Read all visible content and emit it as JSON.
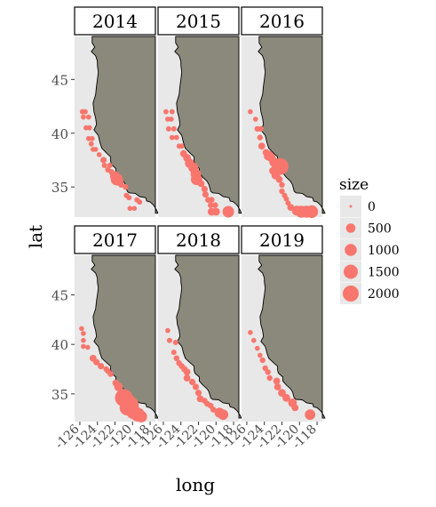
{
  "chart_data": {
    "type": "scatter",
    "facet_variable": "year",
    "facets": [
      {
        "label": "2014",
        "points": [
          {
            "long": -125.7,
            "lat": 42.0,
            "size": 80
          },
          {
            "long": -125.4,
            "lat": 42.0,
            "size": 80
          },
          {
            "long": -125.6,
            "lat": 41.5,
            "size": 70
          },
          {
            "long": -125.0,
            "lat": 41.5,
            "size": 70
          },
          {
            "long": -125.3,
            "lat": 40.5,
            "size": 70
          },
          {
            "long": -124.9,
            "lat": 40.5,
            "size": 70
          },
          {
            "long": -125.0,
            "lat": 39.5,
            "size": 70
          },
          {
            "long": -124.6,
            "lat": 39.5,
            "size": 70
          },
          {
            "long": -124.7,
            "lat": 39.0,
            "size": 70
          },
          {
            "long": -124.5,
            "lat": 38.5,
            "size": 60
          },
          {
            "long": -124.2,
            "lat": 38.5,
            "size": 60
          },
          {
            "long": -123.8,
            "lat": 38.0,
            "size": 60
          },
          {
            "long": -123.3,
            "lat": 37.5,
            "size": 150
          },
          {
            "long": -123.2,
            "lat": 37.0,
            "size": 80
          },
          {
            "long": -122.6,
            "lat": 37.0,
            "size": 80
          },
          {
            "long": -122.8,
            "lat": 36.6,
            "size": 100
          },
          {
            "long": -122.4,
            "lat": 36.4,
            "size": 100
          },
          {
            "long": -122.0,
            "lat": 36.0,
            "size": 600
          },
          {
            "long": -121.8,
            "lat": 35.7,
            "size": 1000
          },
          {
            "long": -121.5,
            "lat": 35.5,
            "size": 400
          },
          {
            "long": -121.3,
            "lat": 35.2,
            "size": 100
          },
          {
            "long": -120.8,
            "lat": 35.0,
            "size": 100
          },
          {
            "long": -120.7,
            "lat": 34.2,
            "size": 80
          },
          {
            "long": -120.4,
            "lat": 34.0,
            "size": 80
          },
          {
            "long": -119.5,
            "lat": 33.8,
            "size": 80
          },
          {
            "long": -119.2,
            "lat": 33.6,
            "size": 80
          },
          {
            "long": -120.3,
            "lat": 33.0,
            "size": 60
          },
          {
            "long": -119.8,
            "lat": 33.0,
            "size": 60
          }
        ]
      },
      {
        "label": "2015",
        "points": [
          {
            "long": -125.7,
            "lat": 42.0,
            "size": 70
          },
          {
            "long": -125.0,
            "lat": 42.0,
            "size": 70
          },
          {
            "long": -125.5,
            "lat": 41.3,
            "size": 70
          },
          {
            "long": -125.1,
            "lat": 41.3,
            "size": 70
          },
          {
            "long": -125.4,
            "lat": 40.4,
            "size": 80
          },
          {
            "long": -124.8,
            "lat": 40.4,
            "size": 80
          },
          {
            "long": -125.0,
            "lat": 39.6,
            "size": 70
          },
          {
            "long": -124.5,
            "lat": 39.6,
            "size": 70
          },
          {
            "long": -124.2,
            "lat": 38.8,
            "size": 70
          },
          {
            "long": -123.9,
            "lat": 38.8,
            "size": 70
          },
          {
            "long": -123.7,
            "lat": 38.1,
            "size": 200
          },
          {
            "long": -123.3,
            "lat": 37.7,
            "size": 300
          },
          {
            "long": -123.0,
            "lat": 37.2,
            "size": 500
          },
          {
            "long": -122.6,
            "lat": 36.8,
            "size": 600
          },
          {
            "long": -122.3,
            "lat": 36.2,
            "size": 700
          },
          {
            "long": -122.2,
            "lat": 35.7,
            "size": 900
          },
          {
            "long": -121.7,
            "lat": 35.3,
            "size": 200
          },
          {
            "long": -121.3,
            "lat": 34.8,
            "size": 150
          },
          {
            "long": -121.2,
            "lat": 34.3,
            "size": 150
          },
          {
            "long": -120.9,
            "lat": 33.8,
            "size": 120
          },
          {
            "long": -120.5,
            "lat": 33.8,
            "size": 120
          },
          {
            "long": -120.6,
            "lat": 33.3,
            "size": 120
          },
          {
            "long": -120.1,
            "lat": 33.3,
            "size": 120
          },
          {
            "long": -120.5,
            "lat": 32.7,
            "size": 300
          },
          {
            "long": -120.0,
            "lat": 32.7,
            "size": 300
          },
          {
            "long": -118.6,
            "lat": 32.7,
            "size": 900
          }
        ]
      },
      {
        "label": "2016",
        "points": [
          {
            "long": -125.6,
            "lat": 42.0,
            "size": 60
          },
          {
            "long": -125.0,
            "lat": 41.3,
            "size": 60
          },
          {
            "long": -124.8,
            "lat": 40.4,
            "size": 100
          },
          {
            "long": -124.4,
            "lat": 40.4,
            "size": 100
          },
          {
            "long": -124.5,
            "lat": 39.6,
            "size": 100
          },
          {
            "long": -124.3,
            "lat": 38.8,
            "size": 200
          },
          {
            "long": -123.8,
            "lat": 38.2,
            "size": 200
          },
          {
            "long": -123.5,
            "lat": 37.9,
            "size": 600
          },
          {
            "long": -123.2,
            "lat": 37.7,
            "size": 400
          },
          {
            "long": -122.9,
            "lat": 37.3,
            "size": 500
          },
          {
            "long": -122.2,
            "lat": 36.9,
            "size": 2200
          },
          {
            "long": -123.0,
            "lat": 36.5,
            "size": 300
          },
          {
            "long": -122.7,
            "lat": 36.1,
            "size": 400
          },
          {
            "long": -122.3,
            "lat": 35.7,
            "size": 200
          },
          {
            "long": -122.0,
            "lat": 35.2,
            "size": 100
          },
          {
            "long": -122.0,
            "lat": 34.6,
            "size": 100
          },
          {
            "long": -121.7,
            "lat": 34.2,
            "size": 80
          },
          {
            "long": -121.5,
            "lat": 33.9,
            "size": 80
          },
          {
            "long": -121.3,
            "lat": 33.5,
            "size": 80
          },
          {
            "long": -121.0,
            "lat": 33.1,
            "size": 200
          },
          {
            "long": -120.3,
            "lat": 32.8,
            "size": 600
          },
          {
            "long": -119.8,
            "lat": 32.7,
            "size": 1000
          },
          {
            "long": -119.2,
            "lat": 32.7,
            "size": 1000
          },
          {
            "long": -118.6,
            "lat": 32.7,
            "size": 1100
          }
        ]
      },
      {
        "label": "2017",
        "points": [
          {
            "long": -125.8,
            "lat": 41.6,
            "size": 60
          },
          {
            "long": -125.6,
            "lat": 41.1,
            "size": 60
          },
          {
            "long": -125.6,
            "lat": 40.4,
            "size": 60
          },
          {
            "long": -125.6,
            "lat": 39.8,
            "size": 60
          },
          {
            "long": -125.1,
            "lat": 39.7,
            "size": 60
          },
          {
            "long": -124.5,
            "lat": 38.6,
            "size": 200
          },
          {
            "long": -124.1,
            "lat": 38.2,
            "size": 150
          },
          {
            "long": -123.6,
            "lat": 37.8,
            "size": 150
          },
          {
            "long": -123.0,
            "lat": 37.5,
            "size": 100
          },
          {
            "long": -122.8,
            "lat": 37.3,
            "size": 100
          },
          {
            "long": -122.5,
            "lat": 37.0,
            "size": 100
          },
          {
            "long": -121.9,
            "lat": 36.1,
            "size": 200
          },
          {
            "long": -121.6,
            "lat": 35.7,
            "size": 400
          },
          {
            "long": -121.4,
            "lat": 34.9,
            "size": 300
          },
          {
            "long": -121.0,
            "lat": 34.6,
            "size": 2500
          },
          {
            "long": -120.6,
            "lat": 34.2,
            "size": 2200
          },
          {
            "long": -120.2,
            "lat": 33.9,
            "size": 2000
          },
          {
            "long": -120.6,
            "lat": 33.6,
            "size": 1800
          },
          {
            "long": -119.9,
            "lat": 33.2,
            "size": 1600
          },
          {
            "long": -119.4,
            "lat": 32.9,
            "size": 1400
          },
          {
            "long": -119.0,
            "lat": 32.7,
            "size": 900
          }
        ]
      },
      {
        "label": "2018",
        "points": [
          {
            "long": -125.5,
            "lat": 41.4,
            "size": 60
          },
          {
            "long": -125.3,
            "lat": 40.4,
            "size": 80
          },
          {
            "long": -124.6,
            "lat": 40.2,
            "size": 80
          },
          {
            "long": -124.8,
            "lat": 39.2,
            "size": 80
          },
          {
            "long": -124.5,
            "lat": 38.6,
            "size": 120
          },
          {
            "long": -124.2,
            "lat": 38.1,
            "size": 120
          },
          {
            "long": -123.9,
            "lat": 37.8,
            "size": 120
          },
          {
            "long": -123.6,
            "lat": 37.5,
            "size": 150
          },
          {
            "long": -123.3,
            "lat": 37.2,
            "size": 200
          },
          {
            "long": -123.3,
            "lat": 36.6,
            "size": 200
          },
          {
            "long": -122.7,
            "lat": 36.2,
            "size": 150
          },
          {
            "long": -122.3,
            "lat": 35.7,
            "size": 150
          },
          {
            "long": -122.0,
            "lat": 35.1,
            "size": 150
          },
          {
            "long": -121.8,
            "lat": 34.5,
            "size": 200
          },
          {
            "long": -121.3,
            "lat": 34.3,
            "size": 120
          },
          {
            "long": -121.0,
            "lat": 34.0,
            "size": 120
          },
          {
            "long": -120.6,
            "lat": 33.8,
            "size": 120
          },
          {
            "long": -120.3,
            "lat": 33.4,
            "size": 120
          },
          {
            "long": -119.6,
            "lat": 33.1,
            "size": 600
          },
          {
            "long": -119.2,
            "lat": 32.9,
            "size": 700
          }
        ]
      },
      {
        "label": "2019",
        "points": [
          {
            "long": -125.6,
            "lat": 41.2,
            "size": 60
          },
          {
            "long": -125.2,
            "lat": 40.4,
            "size": 60
          },
          {
            "long": -124.8,
            "lat": 39.6,
            "size": 60
          },
          {
            "long": -124.5,
            "lat": 38.9,
            "size": 60
          },
          {
            "long": -124.2,
            "lat": 38.4,
            "size": 100
          },
          {
            "long": -123.9,
            "lat": 37.6,
            "size": 100
          },
          {
            "long": -123.6,
            "lat": 37.2,
            "size": 100
          },
          {
            "long": -123.4,
            "lat": 36.6,
            "size": 100
          },
          {
            "long": -122.6,
            "lat": 36.3,
            "size": 200
          },
          {
            "long": -122.5,
            "lat": 35.7,
            "size": 200
          },
          {
            "long": -122.0,
            "lat": 35.1,
            "size": 300
          },
          {
            "long": -121.5,
            "lat": 34.6,
            "size": 300
          },
          {
            "long": -120.8,
            "lat": 34.1,
            "size": 400
          },
          {
            "long": -120.5,
            "lat": 33.6,
            "size": 200
          },
          {
            "long": -118.8,
            "lat": 32.9,
            "size": 700
          }
        ]
      }
    ],
    "xlabel": "long",
    "ylabel": "lat",
    "xlim": [
      -126.6,
      -117.4
    ],
    "ylim": [
      32.2,
      49.0
    ],
    "xticks": [
      -126,
      -124,
      -122,
      -120,
      -118
    ],
    "xtick_labels": [
      "-126",
      "-124",
      "-122",
      "-120",
      "-118"
    ],
    "yticks": [
      35,
      40,
      45
    ],
    "ytick_labels": [
      "35",
      "40",
      "45"
    ],
    "legend": {
      "title": "size",
      "position": "right",
      "breaks": [
        0,
        500,
        1000,
        1500,
        2000
      ],
      "labels": [
        "0",
        "500",
        "1000",
        "1500",
        "2000"
      ]
    },
    "grid": false,
    "colors": {
      "points": "#F8766D",
      "land": "#8B897B",
      "land_outline": "#000000",
      "panel_background": "#E8E8E8",
      "strip_background": "#FFFFFF",
      "strip_border": "#000000"
    },
    "coastline": [
      [
        -124.6,
        48.4
      ],
      [
        -124.3,
        48.0
      ],
      [
        -124.7,
        47.6
      ],
      [
        -124.2,
        47.2
      ],
      [
        -124.0,
        46.7
      ],
      [
        -124.0,
        46.3
      ],
      [
        -123.9,
        45.7
      ],
      [
        -124.0,
        45.0
      ],
      [
        -124.1,
        44.4
      ],
      [
        -124.2,
        43.6
      ],
      [
        -124.5,
        42.8
      ],
      [
        -124.4,
        42.0
      ],
      [
        -124.2,
        41.4
      ],
      [
        -124.1,
        40.8
      ],
      [
        -124.4,
        40.3
      ],
      [
        -123.9,
        39.8
      ],
      [
        -123.7,
        39.1
      ],
      [
        -123.5,
        38.6
      ],
      [
        -122.9,
        38.1
      ],
      [
        -122.5,
        37.8
      ],
      [
        -122.5,
        37.4
      ],
      [
        -122.4,
        37.1
      ],
      [
        -121.9,
        36.7
      ],
      [
        -121.9,
        36.3
      ],
      [
        -121.5,
        35.9
      ],
      [
        -121.0,
        35.5
      ],
      [
        -120.8,
        35.2
      ],
      [
        -120.6,
        34.6
      ],
      [
        -120.4,
        34.45
      ],
      [
        -119.7,
        34.4
      ],
      [
        -119.2,
        34.1
      ],
      [
        -118.5,
        34.0
      ],
      [
        -118.4,
        33.7
      ],
      [
        -118.0,
        33.6
      ],
      [
        -117.6,
        33.3
      ],
      [
        -117.3,
        32.9
      ],
      [
        -117.1,
        32.55
      ]
    ]
  }
}
